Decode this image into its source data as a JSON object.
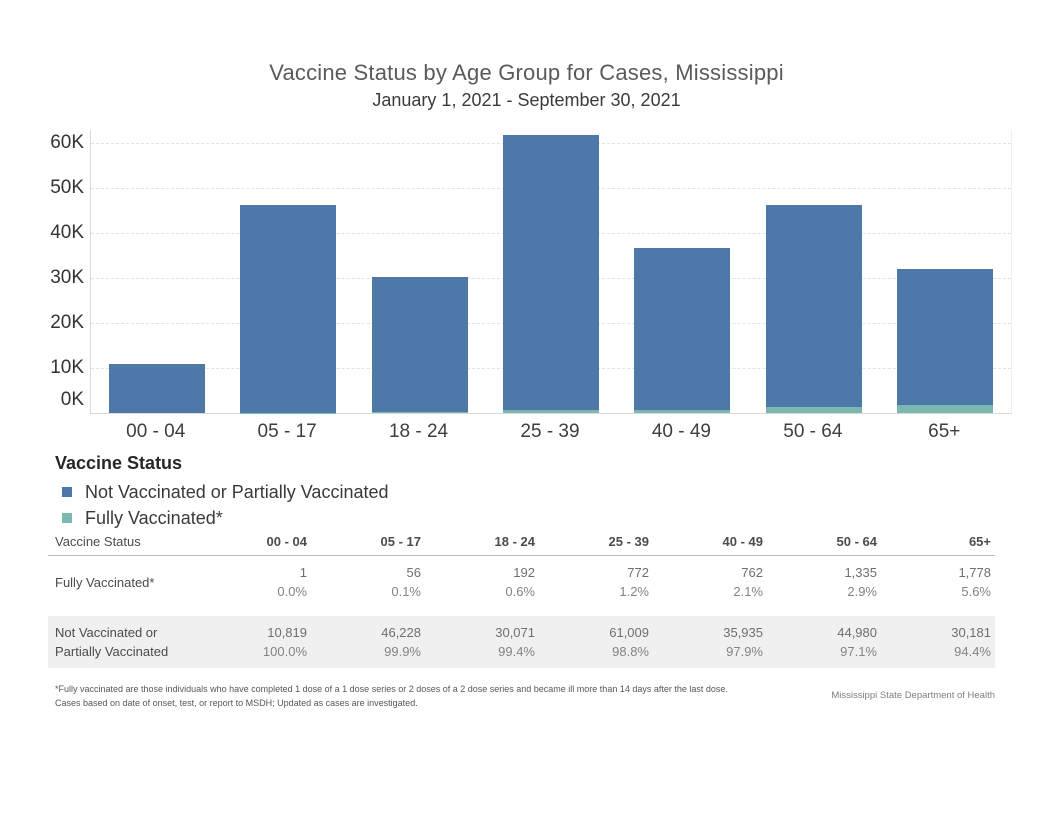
{
  "header": {
    "title": "Vaccine Status by Age Group for Cases, Mississippi",
    "subtitle": "January 1, 2021 - September 30, 2021"
  },
  "chart_data": {
    "type": "bar",
    "stacked": true,
    "categories": [
      "00 - 04",
      "05 - 17",
      "18 - 24",
      "25 - 39",
      "40 - 49",
      "50 - 64",
      "65+"
    ],
    "series": [
      {
        "name": "Not Vaccinated or Partially Vaccinated",
        "color": "#4d78a7",
        "stack_position": "top",
        "values": [
          10819,
          46228,
          30071,
          61009,
          35935,
          44980,
          30181
        ]
      },
      {
        "name": "Fully Vaccinated*",
        "color": "#7ab8b0",
        "stack_position": "bottom",
        "values": [
          1,
          56,
          192,
          772,
          762,
          1335,
          1778
        ]
      }
    ],
    "y_ticks": [
      {
        "value": 0,
        "label": "0K"
      },
      {
        "value": 10000,
        "label": "10K"
      },
      {
        "value": 20000,
        "label": "20K"
      },
      {
        "value": 30000,
        "label": "30K"
      },
      {
        "value": 40000,
        "label": "40K"
      },
      {
        "value": 50000,
        "label": "50K"
      },
      {
        "value": 60000,
        "label": "60K"
      }
    ],
    "ylim": [
      0,
      65000
    ],
    "xlabel": "",
    "ylabel": "",
    "grid": "horizontal-dashed",
    "legend_position": "below-left"
  },
  "legend": {
    "title": "Vaccine Status",
    "items": [
      {
        "label": "Not Vaccinated or Partially Vaccinated",
        "color": "#4d78a7"
      },
      {
        "label": "Fully Vaccinated*",
        "color": "#7ab8b0"
      }
    ]
  },
  "table": {
    "header_label": "Vaccine Status",
    "columns": [
      "00 - 04",
      "05 - 17",
      "18 - 24",
      "25 - 39",
      "40 - 49",
      "50 - 64",
      "65+"
    ],
    "rows": [
      {
        "label_lines": [
          "Fully Vaccinated*"
        ],
        "shaded": false,
        "counts": [
          "1",
          "56",
          "192",
          "772",
          "762",
          "1,335",
          "1,778"
        ],
        "percents": [
          "0.0%",
          "0.1%",
          "0.6%",
          "1.2%",
          "2.1%",
          "2.9%",
          "5.6%"
        ]
      },
      {
        "label_lines": [
          "Not Vaccinated or",
          "Partially Vaccinated"
        ],
        "shaded": true,
        "counts": [
          "10,819",
          "46,228",
          "30,071",
          "61,009",
          "35,935",
          "44,980",
          "30,181"
        ],
        "percents": [
          "100.0%",
          "99.9%",
          "99.4%",
          "98.8%",
          "97.9%",
          "97.1%",
          "94.4%"
        ]
      }
    ]
  },
  "footnotes": {
    "line1": "*Fully vaccinated are those individuals who have completed 1 dose of a 1 dose series or 2 doses of a 2 dose series and became ill more than 14 days after the last dose.",
    "line2": "Cases based on date of onset, test, or report to MSDH; Updated as cases are investigated.",
    "attribution": "Mississippi State Department of Health"
  },
  "colors": {
    "bar_blue": "#4d78a7",
    "bar_teal": "#7ab8b0",
    "shaded_row_bg": "#f0f0f0"
  }
}
